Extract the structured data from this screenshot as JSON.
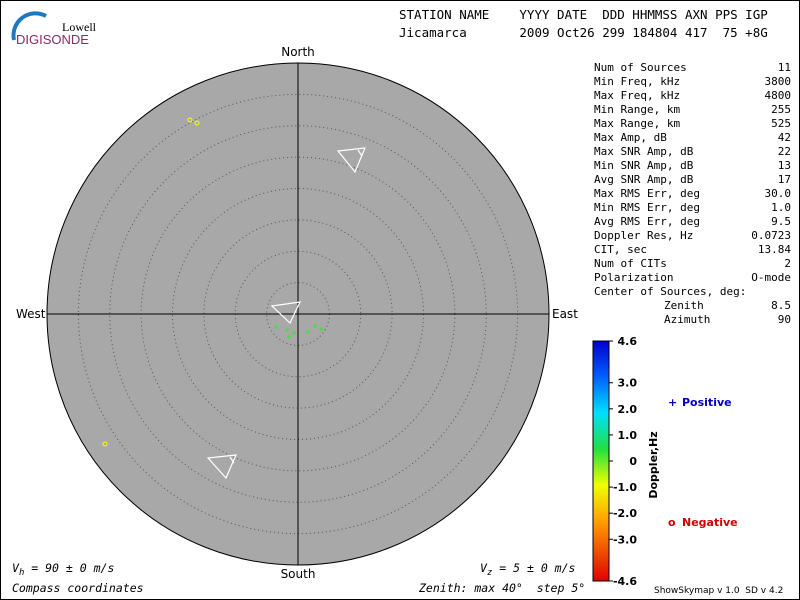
{
  "logo": {
    "brand": "Lowell",
    "product": "DIGISONDE"
  },
  "header": {
    "columns": "STATION NAME    YYYY DATE  DDD HHMMSS AXN PPS IGP",
    "values": "Jicamarca       2009 Oct26 299 184804 417  75 +8G"
  },
  "directions": {
    "north": "North",
    "south": "South",
    "west": "West",
    "east": "East"
  },
  "stats": [
    [
      "Num of Sources",
      "11"
    ],
    [
      "Min Freq, kHz",
      "3800"
    ],
    [
      "Max Freq, kHz",
      "4800"
    ],
    [
      "Min Range, km",
      "255"
    ],
    [
      "Max Range, km",
      "525"
    ],
    [
      "Max Amp, dB",
      "42"
    ],
    [
      "Max SNR Amp, dB",
      "22"
    ],
    [
      "Min SNR Amp, dB",
      "13"
    ],
    [
      "Avg SNR Amp, dB",
      "17"
    ],
    [
      "Max RMS Err, deg",
      "30.0"
    ],
    [
      "Min RMS Err, deg",
      "1.0"
    ],
    [
      "Avg RMS Err, deg",
      "9.5"
    ],
    [
      "Doppler Res, Hz",
      "0.0723"
    ],
    [
      "CIT, sec",
      "13.84"
    ],
    [
      "Num of CITs",
      "2"
    ],
    [
      "Polarization",
      "O-mode"
    ]
  ],
  "center": {
    "title": "Center of Sources, deg:",
    "zenith_label": "Zenith",
    "zenith": "8.5",
    "azimuth_label": "Azimuth",
    "azimuth": "90"
  },
  "colorbar": {
    "title": "Doppler,Hz",
    "ticks": [
      {
        "value": 4.6,
        "label": "4.6"
      },
      {
        "value": 3,
        "label": "3.0"
      },
      {
        "value": 2,
        "label": "2.0"
      },
      {
        "value": 1,
        "label": "1.0"
      },
      0,
      {
        "value": -1,
        "label": "-1.0"
      },
      {
        "value": -2,
        "label": "-2.0"
      },
      {
        "value": -3,
        "label": "-3.0"
      },
      {
        "value": -4.6,
        "label": "-4.6"
      }
    ]
  },
  "legend": {
    "positive_symbol": "+",
    "positive": "Positive",
    "negative_symbol": "o",
    "negative": "Negative"
  },
  "footer": {
    "vh_symbol": "V",
    "vh_sub": "h",
    "vh_text": " = 90 ± 0 m/s",
    "vz_symbol": "V",
    "vz_sub": "z",
    "vz_text": " = 5 ± 0 m/s",
    "coordinates": "Compass coordinates",
    "zenith": "Zenith: max 40°  step 5°",
    "version": "ShowSkymap v 1.0  SD v 4.2"
  }
}
